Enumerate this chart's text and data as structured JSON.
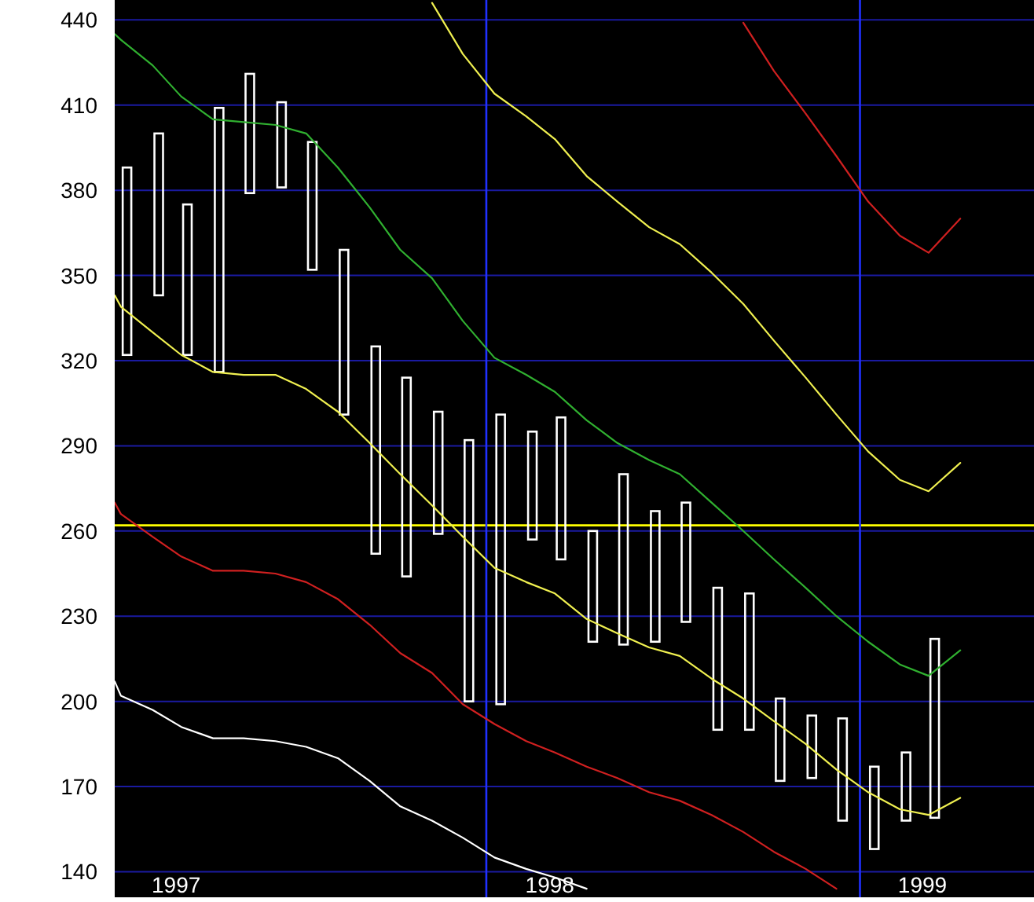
{
  "chart_data": {
    "type": "bar",
    "x": [
      "1997-01-15",
      "1997-02-15",
      "1997-03-15",
      "1997-04-15",
      "1997-05-15",
      "1997-06-15",
      "1997-07-15",
      "1997-08-15",
      "1997-09-15",
      "1997-10-15",
      "1997-11-15",
      "1997-12-15",
      "1998-01-15",
      "1998-02-15",
      "1998-03-15",
      "1998-04-15",
      "1998-05-15",
      "1998-06-15",
      "1998-07-15",
      "1998-08-15",
      "1998-09-15",
      "1998-10-15",
      "1998-11-15",
      "1998-12-15",
      "1999-01-15",
      "1999-02-15",
      "1999-03-15"
    ],
    "xlim": [
      "1997-01-03",
      "1999-06-20"
    ],
    "xticks": [
      {
        "value": "1997-03-04",
        "label": "1997"
      },
      {
        "value": "1998-03-04",
        "label": "1998"
      },
      {
        "value": "1999-03-03",
        "label": "1999"
      }
    ],
    "ylim": [
      131,
      447
    ],
    "yticks": [
      140,
      170,
      200,
      230,
      260,
      290,
      320,
      350,
      380,
      410,
      440
    ],
    "grid": "y",
    "ref_lines": [
      {
        "axis": "y",
        "value": 262,
        "color": "#ffff00"
      },
      {
        "axis": "x",
        "value": "1998-01-01",
        "color": "#2030ff"
      },
      {
        "axis": "x",
        "value": "1999-01-01",
        "color": "#2030ff"
      }
    ],
    "series": [
      {
        "color": "#ffffff",
        "base": [
          322,
          343,
          322,
          316,
          379,
          381,
          352,
          301,
          252,
          244,
          259,
          200,
          199,
          257,
          250,
          221,
          220,
          221,
          228,
          190,
          190,
          172,
          173,
          158,
          148,
          158,
          159
        ],
        "values": [
          66,
          57,
          53,
          93,
          42,
          30,
          45,
          58,
          73,
          70,
          43,
          92,
          102,
          38,
          50,
          39,
          60,
          46,
          42,
          50,
          48,
          29,
          22,
          36,
          29,
          24,
          63
        ]
      },
      {
        "type": "line",
        "color": "#30b030",
        "x": [
          "1997-01-03",
          "1997-01-09",
          "1997-02-09",
          "1997-03-09",
          "1997-04-09",
          "1997-05-09",
          "1997-06-09",
          "1997-07-09",
          "1997-08-09",
          "1997-09-09",
          "1997-10-09",
          "1997-11-09",
          "1997-12-09",
          "1998-01-09",
          "1998-02-09",
          "1998-03-09",
          "1998-04-09",
          "1998-05-09",
          "1998-06-09",
          "1998-07-09",
          "1998-08-09",
          "1998-09-09",
          "1998-10-09",
          "1998-11-09",
          "1998-12-09",
          "1999-01-09",
          "1999-02-09",
          "1999-03-09",
          "1999-04-09"
        ],
        "values": [
          435,
          433,
          424,
          413,
          405,
          404,
          403,
          400,
          388,
          374,
          359,
          349,
          334,
          321,
          315,
          309,
          299,
          291,
          285,
          280,
          270,
          260,
          250,
          240,
          230,
          221,
          213,
          209,
          218
        ]
      },
      {
        "type": "line",
        "color": "#f0f050",
        "x": [
          "1997-11-09",
          "1997-12-09",
          "1998-01-09",
          "1998-02-09",
          "1998-03-09",
          "1998-04-09",
          "1998-05-09",
          "1998-06-09",
          "1998-07-09",
          "1998-08-09",
          "1998-09-09",
          "1998-10-09",
          "1998-11-09",
          "1998-12-09",
          "1999-01-09",
          "1999-02-09",
          "1999-03-09",
          "1999-04-09"
        ],
        "values": [
          446,
          428,
          414,
          406,
          398,
          385,
          376,
          367,
          361,
          351,
          340,
          327,
          314,
          301,
          288,
          278,
          274,
          284
        ]
      },
      {
        "type": "line",
        "color": "#d02020",
        "x": [
          "1998-09-09",
          "1998-10-09",
          "1998-11-09",
          "1998-12-09",
          "1999-01-09",
          "1999-02-09",
          "1999-03-09",
          "1999-04-09"
        ],
        "values": [
          439,
          422,
          407,
          392,
          376,
          364,
          358,
          370
        ]
      },
      {
        "type": "line",
        "color": "#f0f050",
        "x": [
          "1997-01-03",
          "1997-01-09",
          "1997-02-09",
          "1997-03-09",
          "1997-04-09",
          "1997-05-09",
          "1997-06-09",
          "1997-07-09",
          "1997-08-09",
          "1997-09-09",
          "1997-10-09",
          "1997-11-09",
          "1997-12-09",
          "1998-01-09",
          "1998-02-09",
          "1998-03-09",
          "1998-04-09",
          "1998-05-09",
          "1998-06-09",
          "1998-07-09",
          "1998-08-09",
          "1998-09-09",
          "1998-10-09",
          "1998-11-09",
          "1998-12-09",
          "1999-01-09",
          "1999-02-09",
          "1999-03-09",
          "1999-04-09"
        ],
        "values": [
          343,
          339,
          330,
          322,
          316,
          315,
          315,
          310,
          302,
          291,
          280,
          269,
          258,
          247,
          242,
          238,
          229,
          224,
          219,
          216,
          208,
          201,
          193,
          185,
          176,
          168,
          162,
          160,
          166
        ]
      },
      {
        "type": "line",
        "color": "#d02020",
        "x": [
          "1997-01-03",
          "1997-01-09",
          "1997-02-09",
          "1997-03-09",
          "1997-04-09",
          "1997-05-09",
          "1997-06-09",
          "1997-07-09",
          "1997-08-09",
          "1997-09-09",
          "1997-10-09",
          "1997-11-09",
          "1997-12-09",
          "1998-01-09",
          "1998-02-09",
          "1998-03-09",
          "1998-04-09",
          "1998-05-09",
          "1998-06-09",
          "1998-07-09",
          "1998-08-09",
          "1998-09-09",
          "1998-10-09",
          "1998-11-09",
          "1998-12-09"
        ],
        "values": [
          270,
          266,
          258,
          251,
          246,
          246,
          245,
          242,
          236,
          227,
          217,
          210,
          199,
          192,
          186,
          182,
          177,
          173,
          168,
          165,
          160,
          154,
          147,
          141,
          134
        ]
      },
      {
        "type": "line",
        "color": "#ffffff",
        "x": [
          "1997-01-03",
          "1997-01-09",
          "1997-02-09",
          "1997-03-09",
          "1997-04-09",
          "1997-05-09",
          "1997-06-09",
          "1997-07-09",
          "1997-08-09",
          "1997-09-09",
          "1997-10-09",
          "1997-11-09",
          "1997-12-09",
          "1998-01-09",
          "1998-02-09",
          "1998-03-09",
          "1998-04-09"
        ],
        "values": [
          207,
          202,
          197,
          191,
          187,
          187,
          186,
          184,
          180,
          172,
          163,
          158,
          152,
          145,
          141,
          138,
          134
        ]
      }
    ]
  }
}
